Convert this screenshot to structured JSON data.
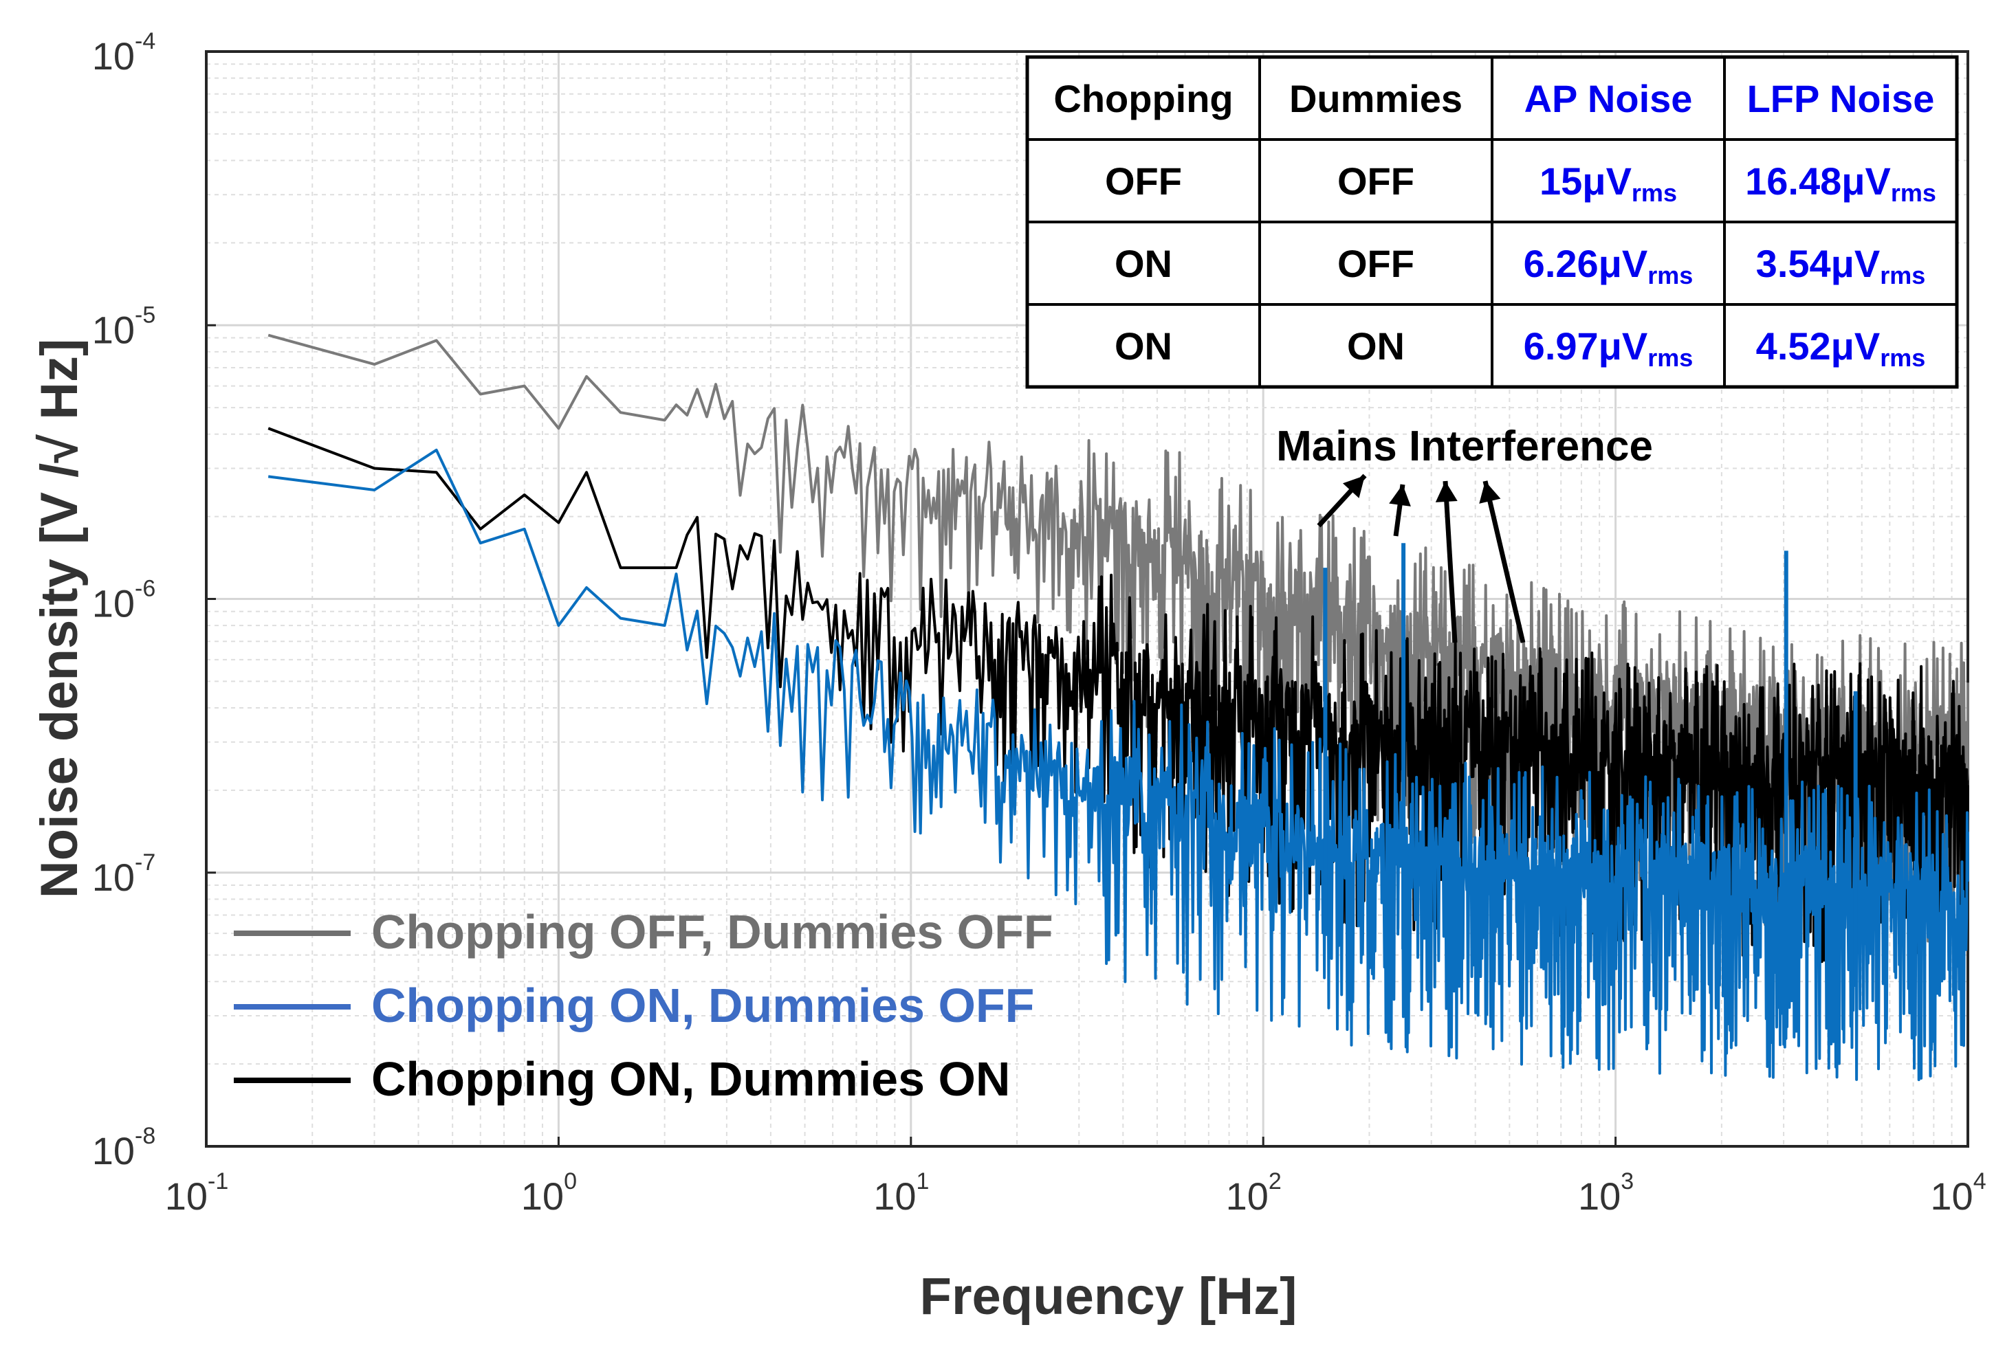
{
  "chart_data": {
    "type": "line",
    "title": "",
    "xlabel": "Frequency [Hz]",
    "ylabel": "Noise density [V /√ Hz]",
    "xscale": "log",
    "yscale": "log",
    "xlim": [
      0.1,
      10000
    ],
    "ylim": [
      1e-08,
      0.0001
    ],
    "grid": true,
    "x_ticks": [
      {
        "base": "10",
        "exp": "-1"
      },
      {
        "base": "10",
        "exp": "0"
      },
      {
        "base": "10",
        "exp": "1"
      },
      {
        "base": "10",
        "exp": "2"
      },
      {
        "base": "10",
        "exp": "3"
      },
      {
        "base": "10",
        "exp": "4"
      }
    ],
    "y_ticks": [
      {
        "base": "10",
        "exp": "-8"
      },
      {
        "base": "10",
        "exp": "-7"
      },
      {
        "base": "10",
        "exp": "-6"
      },
      {
        "base": "10",
        "exp": "-5"
      },
      {
        "base": "10",
        "exp": "-4"
      }
    ],
    "legend_position": "bottom-left",
    "series": [
      {
        "name": "Chopping OFF, Dummies OFF",
        "color": "#7a7a7a",
        "legend_color": "#707070",
        "trend": [
          [
            0.15,
            9.2e-06
          ],
          [
            0.3,
            7.2e-06
          ],
          [
            0.45,
            8.8e-06
          ],
          [
            0.6,
            5.6e-06
          ],
          [
            0.8,
            6e-06
          ],
          [
            1.0,
            4.2e-06
          ],
          [
            1.2,
            6.5e-06
          ],
          [
            1.5,
            4.8e-06
          ],
          [
            2.0,
            4.5e-06
          ],
          [
            3.0,
            3.5e-06
          ],
          [
            5.0,
            2.8e-06
          ],
          [
            10,
            2.2e-06
          ],
          [
            20,
            1.7e-06
          ],
          [
            50,
            1.2e-06
          ],
          [
            100,
            8.5e-07
          ],
          [
            200,
            6e-07
          ],
          [
            500,
            4.2e-07
          ],
          [
            1000,
            3.2e-07
          ],
          [
            3000,
            2.5e-07
          ],
          [
            10000,
            2.2e-07
          ]
        ]
      },
      {
        "name": "Chopping ON, Dummies OFF",
        "color": "#0a6fbf",
        "legend_color": "#3d6cc4",
        "trend": [
          [
            0.15,
            2.8e-06
          ],
          [
            0.3,
            2.5e-06
          ],
          [
            0.45,
            3.5e-06
          ],
          [
            0.6,
            1.6e-06
          ],
          [
            0.8,
            1.8e-06
          ],
          [
            1.0,
            8e-07
          ],
          [
            1.2,
            1.1e-06
          ],
          [
            1.5,
            8.5e-07
          ],
          [
            2.0,
            8e-07
          ],
          [
            3.0,
            6.5e-07
          ],
          [
            5.0,
            4.5e-07
          ],
          [
            10,
            3e-07
          ],
          [
            20,
            2e-07
          ],
          [
            50,
            1.4e-07
          ],
          [
            100,
            1.1e-07
          ],
          [
            200,
            9e-08
          ],
          [
            500,
            8e-08
          ],
          [
            1000,
            7.5e-08
          ],
          [
            3000,
            7e-08
          ],
          [
            10000,
            6.5e-08
          ]
        ]
      },
      {
        "name": "Chopping ON, Dummies ON",
        "color": "#000000",
        "legend_color": "#000000",
        "trend": [
          [
            0.15,
            4.2e-06
          ],
          [
            0.3,
            3e-06
          ],
          [
            0.45,
            2.9e-06
          ],
          [
            0.6,
            1.8e-06
          ],
          [
            0.8,
            2.4e-06
          ],
          [
            1.0,
            1.9e-06
          ],
          [
            1.2,
            2.9e-06
          ],
          [
            1.5,
            1.3e-06
          ],
          [
            2.0,
            1.3e-06
          ],
          [
            3.0,
            1.1e-06
          ],
          [
            5.0,
            8.5e-07
          ],
          [
            10,
            6.5e-07
          ],
          [
            20,
            4.8e-07
          ],
          [
            50,
            3.6e-07
          ],
          [
            100,
            3e-07
          ],
          [
            200,
            2.5e-07
          ],
          [
            500,
            2.2e-07
          ],
          [
            1000,
            2e-07
          ],
          [
            3000,
            1.9e-07
          ],
          [
            10000,
            1.8e-07
          ]
        ]
      }
    ],
    "spikes": [
      {
        "x": 150,
        "y": 1.3e-06,
        "series": "Chopping ON, Dummies OFF"
      },
      {
        "x": 250,
        "y": 1.6e-06,
        "series": "Chopping ON, Dummies OFF"
      },
      {
        "x": 350,
        "y": 4.4e-07,
        "series": "Chopping ON, Dummies ON"
      },
      {
        "x": 550,
        "y": 4.8e-07,
        "series": "Chopping ON, Dummies ON"
      },
      {
        "x": 3050,
        "y": 1.5e-06,
        "series": "Chopping ON, Dummies OFF"
      },
      {
        "x": 4800,
        "y": 4.6e-07,
        "series": "Chopping ON, Dummies OFF"
      },
      {
        "x": 7000,
        "y": 3.6e-07,
        "series": "Chopping ON, Dummies ON"
      }
    ],
    "annotation": {
      "text": "Mains Interference",
      "targets_hz": [
        150,
        250,
        350,
        550
      ]
    },
    "table": {
      "headers": [
        "Chopping",
        "Dummies",
        "AP Noise",
        "LFP Noise"
      ],
      "header_colors": [
        "#000000",
        "#000000",
        "#0000ee",
        "#0000ee"
      ],
      "rows": [
        {
          "chopping": "OFF",
          "dummies": "OFF",
          "ap": "15μV",
          "ap_sub": "rms",
          "lfp": "16.48μV",
          "lfp_sub": "rms"
        },
        {
          "chopping": "ON",
          "dummies": "OFF",
          "ap": "6.26μV",
          "ap_sub": "rms",
          "lfp": "3.54μV",
          "lfp_sub": "rms"
        },
        {
          "chopping": "ON",
          "dummies": "ON",
          "ap": "6.97μV",
          "ap_sub": "rms",
          "lfp": "4.52μV",
          "lfp_sub": "rms"
        }
      ]
    }
  }
}
